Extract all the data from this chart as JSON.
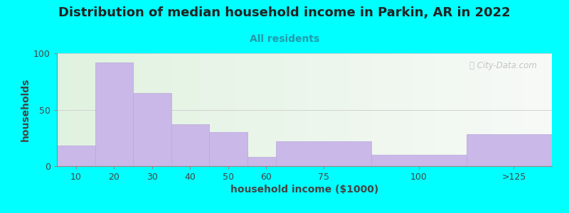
{
  "title": "Distribution of median household income in Parkin, AR in 2022",
  "subtitle": "All residents",
  "xlabel": "household income ($1000)",
  "ylabel": "households",
  "background_outer": "#00FFFF",
  "bar_color": "#C9B8E8",
  "bar_edge_color": "#B8A8D8",
  "values": [
    18,
    92,
    65,
    37,
    30,
    8,
    22,
    10,
    28
  ],
  "bar_lefts": [
    5,
    15,
    25,
    35,
    45,
    55,
    62.5,
    87.5,
    112.5
  ],
  "bar_rights": [
    15,
    25,
    35,
    45,
    55,
    62.5,
    87.5,
    112.5,
    135
  ],
  "xlim": [
    5,
    135
  ],
  "ylim": [
    0,
    100
  ],
  "yticks": [
    0,
    50,
    100
  ],
  "xtick_positions": [
    10,
    20,
    30,
    40,
    50,
    60,
    75,
    100,
    125
  ],
  "xtick_labels": [
    "10",
    "20",
    "30",
    "40",
    "50",
    "60",
    "75",
    "100",
    ">125"
  ],
  "grid_color": "#CCCCCC",
  "title_fontsize": 13,
  "subtitle_fontsize": 10,
  "axis_label_fontsize": 10,
  "tick_fontsize": 9,
  "watermark_text": "City-Data.com",
  "title_color": "#222222",
  "subtitle_color": "#2299AA",
  "label_color": "#444444"
}
